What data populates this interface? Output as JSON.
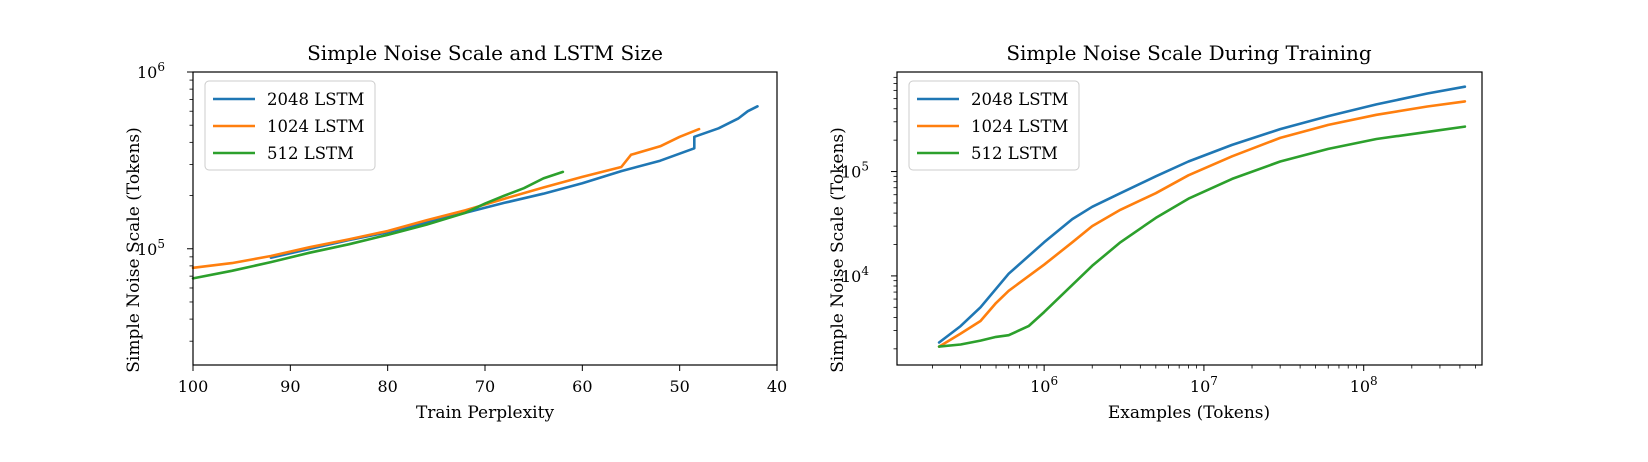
{
  "chart_data": [
    {
      "type": "line",
      "title": "Simple Noise Scale and LSTM Size",
      "xlabel": "Train Perplexity",
      "ylabel": "Simple Noise Scale (Tokens)",
      "x_inverted": true,
      "xlim": [
        100,
        40
      ],
      "ylim": [
        22000,
        1000000
      ],
      "yscale": "log",
      "x_ticks": [
        {
          "value": 100,
          "label": "100"
        },
        {
          "value": 90,
          "label": "90"
        },
        {
          "value": 80,
          "label": "80"
        },
        {
          "value": 70,
          "label": "70"
        },
        {
          "value": 60,
          "label": "60"
        },
        {
          "value": 50,
          "label": "50"
        },
        {
          "value": 40,
          "label": "40"
        }
      ],
      "y_ticks": [
        {
          "value": 100000,
          "base": "10",
          "exp": "5"
        },
        {
          "value": 1000000,
          "base": "10",
          "exp": "6"
        }
      ],
      "legend": "upper-left",
      "series": [
        {
          "name": "2048 LSTM",
          "color": "#1f77b4",
          "x": [
            92,
            88,
            84,
            80,
            76,
            72,
            68,
            64,
            60,
            56,
            52,
            48.5,
            48.5,
            46,
            44,
            43,
            42
          ],
          "y": [
            89000,
            100000,
            112000,
            124000,
            141000,
            160000,
            182000,
            205000,
            235000,
            275000,
            315000,
            370000,
            430000,
            480000,
            545000,
            600000,
            640000
          ]
        },
        {
          "name": "1024 LSTM",
          "color": "#ff7f0e",
          "x": [
            100,
            96,
            92,
            88,
            84,
            80,
            76,
            72,
            68,
            64,
            60,
            56,
            55,
            52,
            50,
            48
          ],
          "y": [
            78000,
            83000,
            91000,
            102000,
            113000,
            126000,
            145000,
            165000,
            192000,
            222000,
            255000,
            290000,
            340000,
            380000,
            430000,
            475000
          ]
        },
        {
          "name": "512 LSTM",
          "color": "#2ca02c",
          "x": [
            100,
            96,
            92,
            88,
            84,
            80,
            76,
            72,
            70,
            68,
            66,
            64,
            62
          ],
          "y": [
            68000,
            75000,
            84000,
            95000,
            106000,
            120000,
            137000,
            160000,
            180000,
            200000,
            220000,
            250000,
            272000
          ]
        }
      ]
    },
    {
      "type": "line",
      "title": "Simple Noise Scale During Training",
      "xlabel": "Examples (Tokens)",
      "ylabel": "Simple Noise Scale (Tokens)",
      "xscale": "log",
      "yscale": "log",
      "xlim": [
        120000,
        550000000
      ],
      "ylim": [
        1400,
        900000
      ],
      "x_ticks": [
        {
          "value": 1000000,
          "base": "10",
          "exp": "6"
        },
        {
          "value": 10000000,
          "base": "10",
          "exp": "7"
        },
        {
          "value": 100000000,
          "base": "10",
          "exp": "8"
        }
      ],
      "y_ticks": [
        {
          "value": 10000,
          "base": "10",
          "exp": "4"
        },
        {
          "value": 100000,
          "base": "10",
          "exp": "5"
        }
      ],
      "legend": "upper-left",
      "series": [
        {
          "name": "2048 LSTM",
          "color": "#1f77b4",
          "x": [
            220000,
            300000,
            400000,
            600000,
            1000000,
            1500000,
            2000000,
            3000000,
            5000000,
            8000000,
            15000000,
            30000000,
            60000000,
            120000000,
            250000000,
            430000000
          ],
          "y": [
            2300,
            3300,
            5000,
            10500,
            21000,
            35000,
            46000,
            62000,
            90000,
            125000,
            180000,
            255000,
            340000,
            440000,
            560000,
            650000
          ]
        },
        {
          "name": "1024 LSTM",
          "color": "#ff7f0e",
          "x": [
            220000,
            300000,
            400000,
            500000,
            600000,
            1000000,
            1500000,
            2000000,
            3000000,
            5000000,
            8000000,
            15000000,
            30000000,
            60000000,
            120000000,
            250000000,
            430000000
          ],
          "y": [
            2100,
            2800,
            3700,
            5500,
            7200,
            12800,
            21000,
            30000,
            43000,
            62000,
            92000,
            140000,
            210000,
            280000,
            350000,
            420000,
            470000
          ]
        },
        {
          "name": "512 LSTM",
          "color": "#2ca02c",
          "x": [
            220000,
            300000,
            400000,
            500000,
            600000,
            800000,
            1000000,
            1500000,
            2000000,
            3000000,
            5000000,
            8000000,
            15000000,
            30000000,
            60000000,
            120000000,
            250000000,
            430000000
          ],
          "y": [
            2100,
            2200,
            2400,
            2600,
            2700,
            3300,
            4500,
            8200,
            12500,
            21000,
            36000,
            55000,
            85000,
            125000,
            165000,
            205000,
            240000,
            270000
          ]
        }
      ]
    }
  ]
}
